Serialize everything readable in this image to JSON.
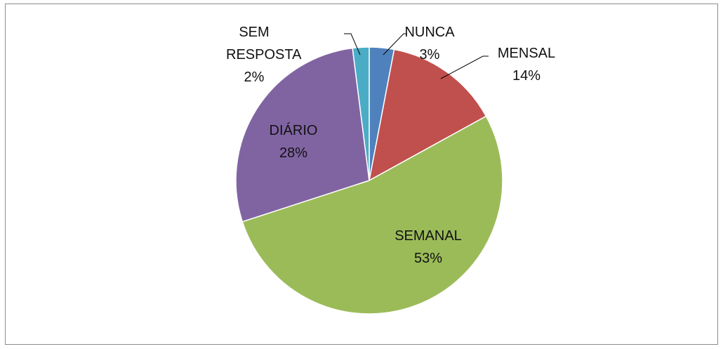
{
  "chart_data": {
    "type": "pie",
    "categories": [
      "NUNCA",
      "MENSAL",
      "SEMANAL",
      "DIÁRIO",
      "SEM RESPOSTA"
    ],
    "values": [
      3,
      14,
      53,
      28,
      2
    ],
    "value_labels": [
      "3%",
      "14%",
      "53%",
      "28%",
      "2%"
    ],
    "colors": [
      "#4f81bd",
      "#c0504d",
      "#9bbb59",
      "#8064a2",
      "#4bacc6"
    ]
  }
}
